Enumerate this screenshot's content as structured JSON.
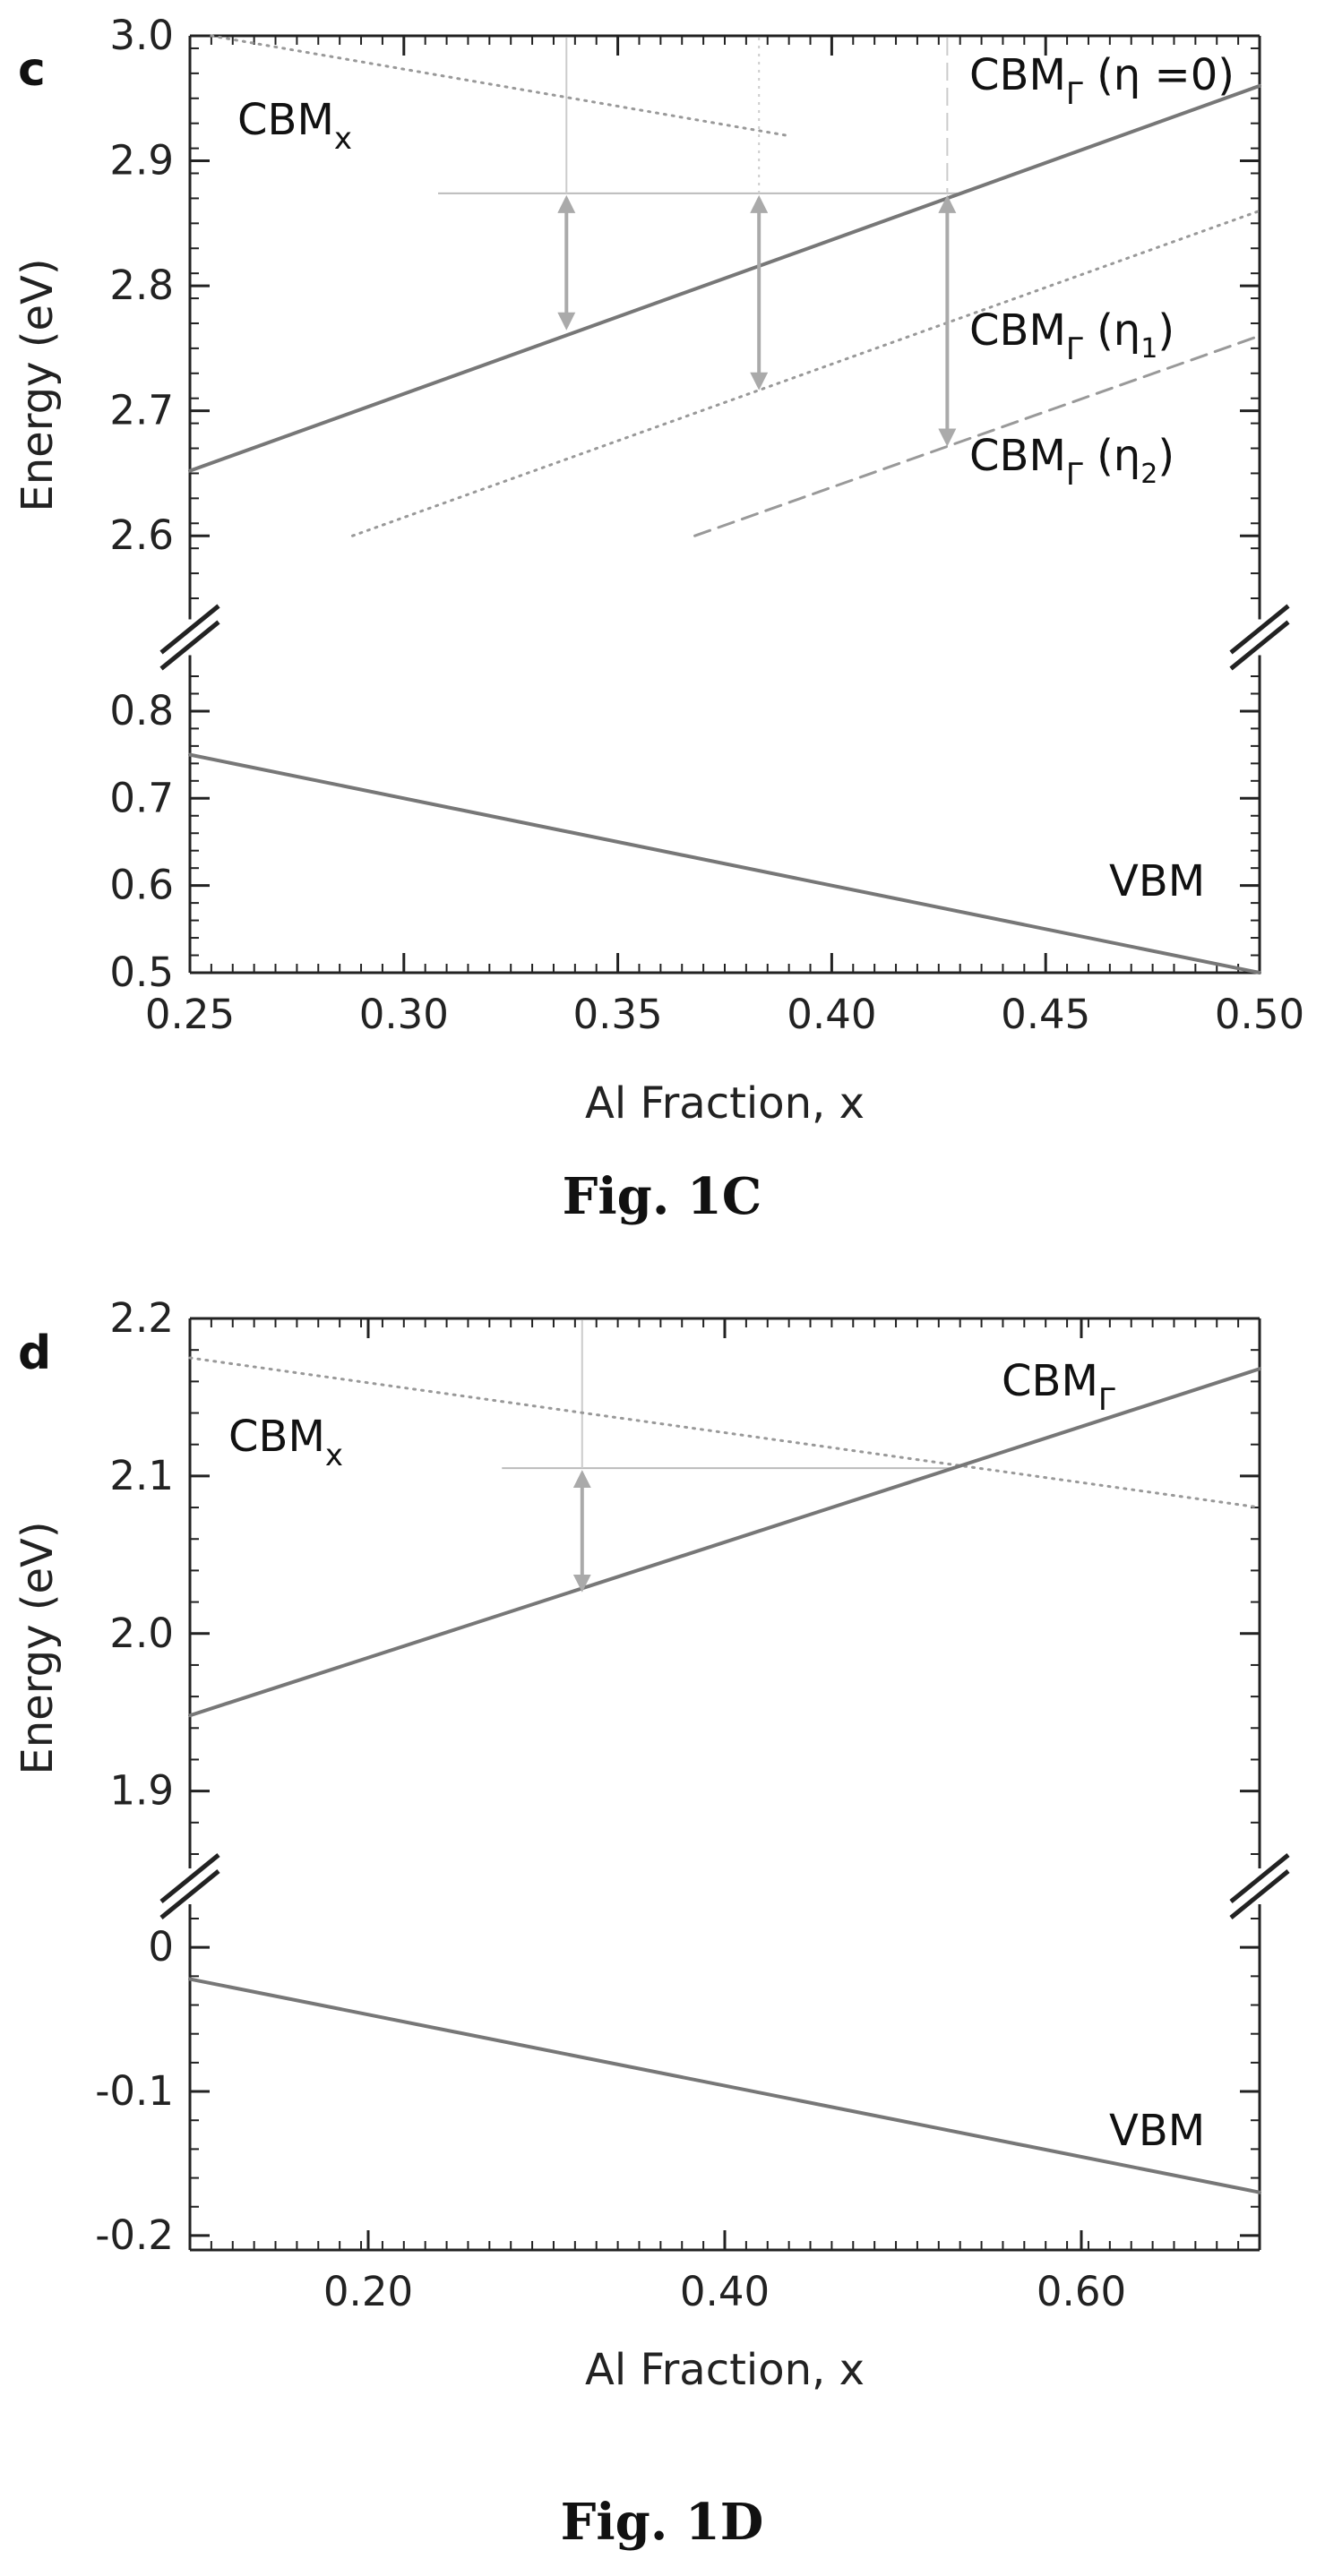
{
  "chart_data": [
    {
      "type": "line",
      "panel": "c",
      "caption": "Fig. 1C",
      "xlabel": "Al Fraction, x",
      "ylabel": "Energy (eV)",
      "xlim": [
        0.25,
        0.5
      ],
      "x_ticks": [
        0.25,
        0.3,
        0.35,
        0.4,
        0.45,
        0.5
      ],
      "x_tick_labels": [
        "0.25",
        "0.30",
        "0.35",
        "0.40",
        "0.45",
        "0.50"
      ],
      "y_upper_lim": [
        2.55,
        3.0
      ],
      "y_upper_ticks": [
        2.6,
        2.7,
        2.8,
        2.9,
        3.0
      ],
      "y_upper_tick_labels": [
        "2.6",
        "2.7",
        "2.8",
        "2.9",
        "3.0"
      ],
      "y_lower_lim": [
        0.5,
        0.84
      ],
      "y_lower_ticks": [
        0.5,
        0.6,
        0.7,
        0.8
      ],
      "y_lower_tick_labels": [
        "0.5",
        "0.6",
        "0.7",
        "0.8"
      ],
      "axis_break": true,
      "series": [
        {
          "name": "CBM",
          "subscript": "x",
          "style": "dotted",
          "x": [
            0.255,
            0.39
          ],
          "y": [
            3.0,
            2.92
          ],
          "segment": "upper"
        },
        {
          "name": "CBM",
          "subscript": "Γ",
          "suffix": " (η =0)",
          "style": "solid",
          "x": [
            0.25,
            0.5
          ],
          "y": [
            2.652,
            2.96
          ],
          "segment": "upper"
        },
        {
          "name": "CBM",
          "subscript": "Γ",
          "suffix": " (η",
          "suffix_sub": "1",
          "suffix_end": ")",
          "style": "dotted",
          "x": [
            0.288,
            0.5
          ],
          "y": [
            2.6,
            2.86
          ],
          "segment": "upper"
        },
        {
          "name": "CBM",
          "subscript": "Γ",
          "suffix": " (η",
          "suffix_sub": "2",
          "suffix_end": ")",
          "style": "dashed",
          "x": [
            0.368,
            0.5
          ],
          "y": [
            2.6,
            2.76
          ],
          "segment": "upper"
        },
        {
          "name": "VBM",
          "style": "solid",
          "x": [
            0.25,
            0.5
          ],
          "y": [
            0.75,
            0.5
          ],
          "segment": "lower"
        }
      ],
      "guides": {
        "horizontal": {
          "y": 2.874,
          "x": [
            0.308,
            0.43
          ]
        },
        "vertical": [
          0.338,
          0.383,
          0.427
        ]
      },
      "arrows": [
        {
          "x": 0.338,
          "y_from": 2.874,
          "y_to": 2.763
        },
        {
          "x": 0.383,
          "y_from": 2.874,
          "y_to": 2.715
        },
        {
          "x": 0.427,
          "y_from": 2.874,
          "y_to": 2.67
        }
      ]
    },
    {
      "type": "line",
      "panel": "d",
      "caption": "Fig. 1D",
      "xlabel": "Al Fraction, x",
      "ylabel": "Energy (eV)",
      "xlim": [
        0.1,
        0.7
      ],
      "x_ticks": [
        0.2,
        0.4,
        0.6
      ],
      "x_tick_labels": [
        "0.20",
        "0.40",
        "0.60"
      ],
      "y_upper_lim": [
        1.86,
        2.2
      ],
      "y_upper_ticks": [
        1.9,
        2.0,
        2.1,
        2.2
      ],
      "y_upper_tick_labels": [
        "1.9",
        "2.0",
        "2.1",
        "2.2"
      ],
      "y_lower_lim": [
        -0.21,
        0.02
      ],
      "y_lower_ticks": [
        -0.2,
        -0.1,
        0.0
      ],
      "y_lower_tick_labels": [
        "-0.2",
        "-0.1",
        "0"
      ],
      "axis_break": true,
      "series": [
        {
          "name": "CBM",
          "subscript": "x",
          "style": "dotted",
          "x": [
            0.1,
            0.7
          ],
          "y": [
            2.175,
            2.08
          ],
          "segment": "upper"
        },
        {
          "name": "CBM",
          "subscript": "Γ",
          "style": "solid",
          "x": [
            0.1,
            0.7
          ],
          "y": [
            1.948,
            2.168
          ],
          "segment": "upper"
        },
        {
          "name": "VBM",
          "style": "solid",
          "x": [
            0.1,
            0.7
          ],
          "y": [
            -0.022,
            -0.17
          ],
          "segment": "lower"
        }
      ],
      "guides": {
        "horizontal": {
          "y": 2.105,
          "x": [
            0.275,
            0.53
          ]
        },
        "vertical": [
          0.32
        ]
      },
      "arrows": [
        {
          "x": 0.32,
          "y_from": 2.105,
          "y_to": 2.025
        }
      ]
    }
  ]
}
